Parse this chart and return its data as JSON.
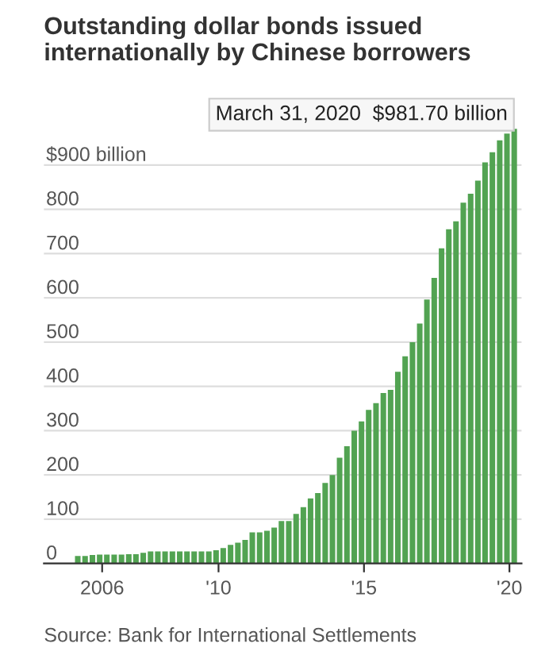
{
  "chart_data": {
    "type": "bar",
    "title": "Outstanding dollar bonds issued\ninternationally by Chinese borrowers",
    "x": [
      "2005-03",
      "2005-06",
      "2005-09",
      "2005-12",
      "2006-03",
      "2006-06",
      "2006-09",
      "2006-12",
      "2007-03",
      "2007-06",
      "2007-09",
      "2007-12",
      "2008-03",
      "2008-06",
      "2008-09",
      "2008-12",
      "2009-03",
      "2009-06",
      "2009-09",
      "2009-12",
      "2010-03",
      "2010-06",
      "2010-09",
      "2010-12",
      "2011-03",
      "2011-06",
      "2011-09",
      "2011-12",
      "2012-03",
      "2012-06",
      "2012-09",
      "2012-12",
      "2013-03",
      "2013-06",
      "2013-09",
      "2013-12",
      "2014-03",
      "2014-06",
      "2014-09",
      "2014-12",
      "2015-03",
      "2015-06",
      "2015-09",
      "2015-12",
      "2016-03",
      "2016-06",
      "2016-09",
      "2016-12",
      "2017-03",
      "2017-06",
      "2017-09",
      "2017-12",
      "2018-03",
      "2018-06",
      "2018-09",
      "2018-12",
      "2019-03",
      "2019-06",
      "2019-09",
      "2019-12",
      "2020-03"
    ],
    "series": [
      {
        "color": "#52a352",
        "values": [
          17,
          17,
          19,
          20,
          20,
          20,
          20,
          21,
          21,
          24,
          27,
          27,
          27,
          27,
          27,
          27,
          27,
          27,
          27,
          30,
          35,
          42,
          47,
          53,
          70,
          70,
          74,
          81,
          96,
          96,
          112,
          127,
          147,
          159,
          182,
          200,
          239,
          265,
          300,
          321,
          347,
          362,
          385,
          392,
          433,
          468,
          500,
          542,
          596,
          645,
          712,
          755,
          773,
          815,
          835,
          865,
          906,
          929,
          956,
          971,
          981.7
        ]
      }
    ],
    "ylim": [
      0,
      990
    ],
    "yticks": [
      0,
      100,
      200,
      300,
      400,
      500,
      600,
      700,
      800,
      {
        "value": 900,
        "label": "$900 billion"
      }
    ],
    "xlim": [
      "2004-01",
      "2020-06"
    ],
    "xticks": [
      {
        "value": "2006",
        "label": "2006"
      },
      {
        "value": "2010",
        "label": "'10"
      },
      {
        "value": "2015",
        "label": "'15"
      },
      {
        "value": "2020",
        "label": "'20"
      }
    ],
    "grid": "y",
    "annotations": [
      {
        "text": "March 31, 2020  $981.70 billion",
        "x": "2020-03",
        "y": 981.7
      },
      "Source: Bank for International Settlements"
    ]
  }
}
